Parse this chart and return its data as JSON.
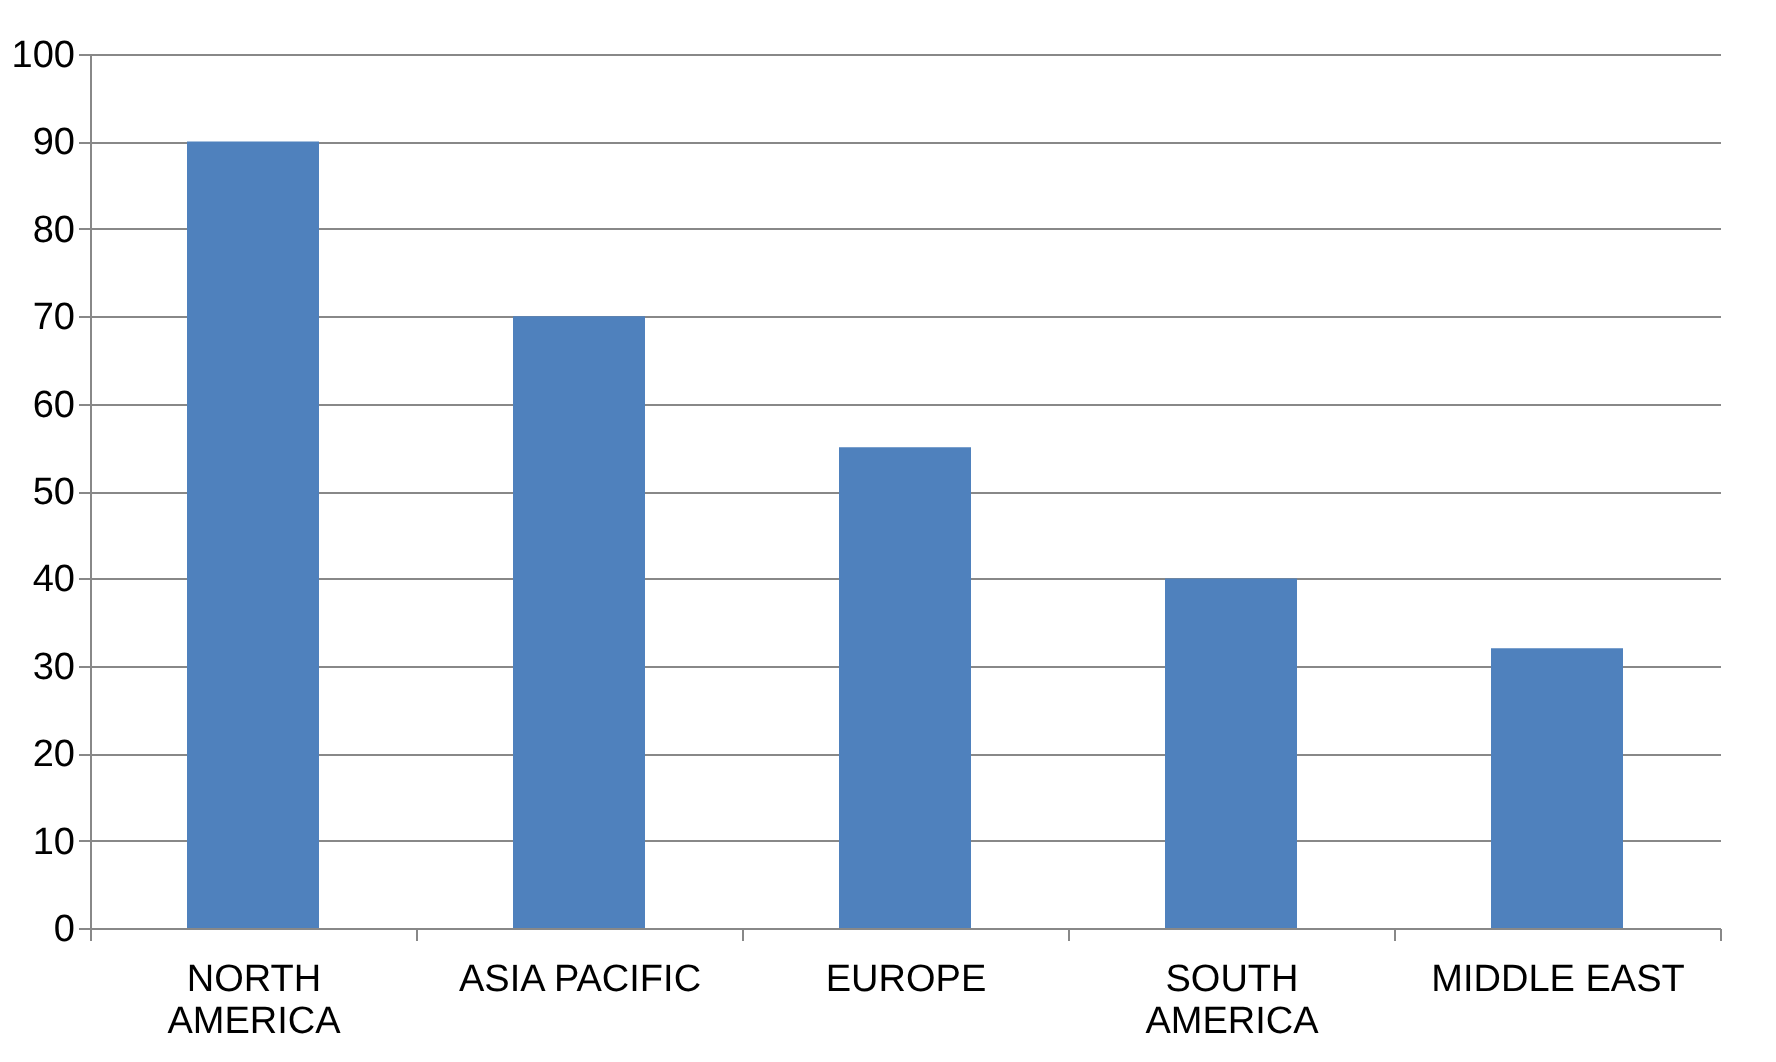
{
  "chart_data": {
    "type": "bar",
    "categories": [
      "NORTH\nAMERICA",
      "ASIA PACIFIC",
      "EUROPE",
      "SOUTH\nAMERICA",
      "MIDDLE EAST"
    ],
    "values": [
      90,
      70,
      55,
      40,
      32
    ],
    "color": "#4f81bd",
    "ylim": [
      0,
      100
    ],
    "yticks": [
      0,
      10,
      20,
      30,
      40,
      50,
      60,
      70,
      80,
      90,
      100
    ],
    "grid": "y"
  }
}
